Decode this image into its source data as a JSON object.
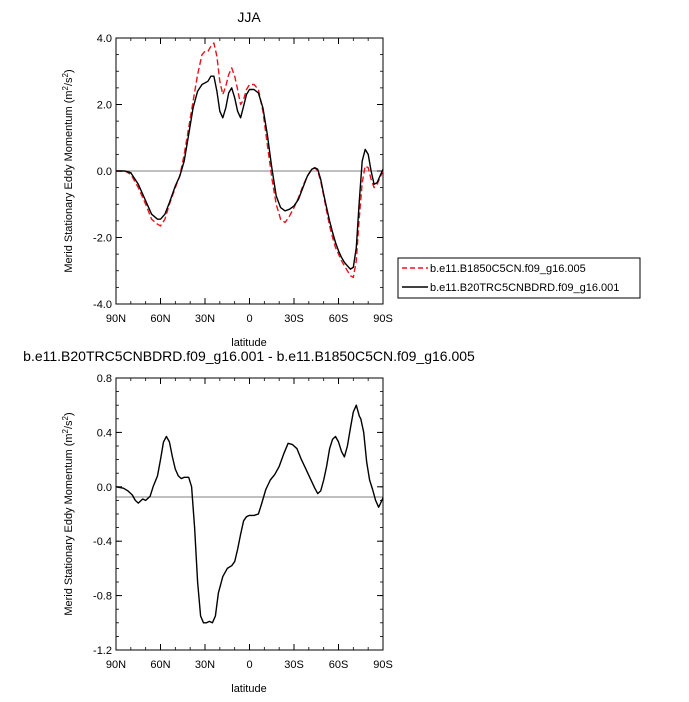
{
  "chart_data": [
    {
      "type": "line",
      "title": "JJA",
      "xlabel": "latitude",
      "ylabel": "Merid Stationary Eddy Momentum (m²/s²)",
      "ylabel_main": "Merid Stationary Eddy Momentum (m",
      "ylabel_sup": "2",
      "ylabel_mid": "/s",
      "ylabel_end": ")",
      "xlim": [
        90,
        -90
      ],
      "ylim": [
        -4.0,
        4.0
      ],
      "grid": false,
      "legend_position": "right",
      "x_ticks": [
        90,
        60,
        30,
        0,
        -30,
        -60,
        -90
      ],
      "x_tick_labels": [
        "90N",
        "60N",
        "30N",
        "0",
        "30S",
        "60S",
        "90S"
      ],
      "y_ticks": [
        -4.0,
        -2.0,
        0.0,
        2.0,
        4.0
      ],
      "y_tick_labels": [
        "-4.0",
        "-2.0",
        "0.0",
        "2.0",
        "4.0"
      ],
      "series": [
        {
          "name": "b.e11.B1850C5CN.f09_g16.005",
          "color": "#e8141c",
          "dash": "dashed",
          "x": [
            90,
            84,
            80,
            75,
            70,
            66,
            62,
            60,
            57,
            54,
            50,
            47,
            44,
            41,
            38,
            35,
            32,
            30,
            28,
            26,
            24,
            22,
            20,
            18,
            16,
            14,
            12,
            10,
            8,
            6,
            4,
            2,
            0,
            -3,
            -6,
            -9,
            -12,
            -15,
            -18,
            -21,
            -24,
            -27,
            -30,
            -33,
            -36,
            -39,
            -42,
            -44,
            -46,
            -48,
            -50,
            -52,
            -54,
            -56,
            -58,
            -60,
            -62,
            -64,
            -66,
            -68,
            -70,
            -72,
            -74,
            -76,
            -78,
            -80,
            -82,
            -84,
            -86,
            -88,
            -90
          ],
          "y": [
            0.0,
            0.0,
            -0.1,
            -0.5,
            -1.0,
            -1.45,
            -1.6,
            -1.65,
            -1.45,
            -1.0,
            -0.5,
            -0.15,
            0.5,
            1.3,
            2.1,
            2.9,
            3.5,
            3.6,
            3.6,
            3.75,
            3.85,
            3.45,
            2.7,
            2.3,
            2.55,
            2.9,
            3.1,
            2.85,
            2.45,
            2.0,
            2.15,
            2.45,
            2.6,
            2.6,
            2.45,
            1.8,
            0.8,
            -0.2,
            -1.0,
            -1.45,
            -1.55,
            -1.35,
            -1.1,
            -0.8,
            -0.45,
            -0.15,
            0.05,
            0.1,
            0.0,
            -0.3,
            -0.75,
            -1.2,
            -1.65,
            -2.0,
            -2.3,
            -2.5,
            -2.7,
            -2.85,
            -3.0,
            -3.15,
            -3.2,
            -2.7,
            -1.4,
            -0.35,
            0.15,
            0.1,
            -0.25,
            -0.5,
            -0.4,
            -0.2,
            0.0
          ]
        },
        {
          "name": "b.e11.B20TRC5CNBDRD.f09_g16.001",
          "color": "#000000",
          "dash": "solid",
          "x": [
            90,
            84,
            80,
            75,
            70,
            66,
            62,
            60,
            57,
            54,
            50,
            47,
            44,
            41,
            38,
            35,
            32,
            30,
            28,
            26,
            24,
            22,
            20,
            18,
            16,
            14,
            12,
            10,
            8,
            6,
            4,
            2,
            0,
            -3,
            -6,
            -9,
            -12,
            -15,
            -18,
            -21,
            -24,
            -27,
            -30,
            -33,
            -36,
            -39,
            -42,
            -44,
            -46,
            -48,
            -50,
            -52,
            -54,
            -56,
            -58,
            -60,
            -62,
            -64,
            -66,
            -68,
            -70,
            -72,
            -74,
            -76,
            -78,
            -80,
            -82,
            -84,
            -86,
            -88,
            -90
          ],
          "y": [
            0.0,
            0.0,
            -0.05,
            -0.4,
            -0.9,
            -1.3,
            -1.45,
            -1.45,
            -1.3,
            -0.95,
            -0.45,
            -0.15,
            0.3,
            1.1,
            1.9,
            2.4,
            2.6,
            2.65,
            2.7,
            2.85,
            2.85,
            2.4,
            1.8,
            1.6,
            1.9,
            2.35,
            2.5,
            2.2,
            1.8,
            1.6,
            1.95,
            2.3,
            2.45,
            2.45,
            2.35,
            1.9,
            1.1,
            0.1,
            -0.75,
            -1.1,
            -1.2,
            -1.15,
            -1.05,
            -0.85,
            -0.5,
            -0.15,
            0.05,
            0.1,
            0.05,
            -0.25,
            -0.7,
            -1.1,
            -1.5,
            -1.85,
            -2.15,
            -2.4,
            -2.6,
            -2.75,
            -2.85,
            -2.95,
            -2.9,
            -2.3,
            -0.9,
            0.3,
            0.65,
            0.5,
            0.0,
            -0.4,
            -0.35,
            -0.15,
            0.05
          ]
        }
      ]
    },
    {
      "type": "line",
      "title": "b.e11.B20TRC5CNBDRD.f09_g16.001 - b.e11.B1850C5CN.f09_g16.005",
      "xlabel": "latitude",
      "ylabel": "Merid Stationary Eddy Momentum (m²/s²)",
      "ylabel_main": "Merid Stationary Eddy Momentum (m",
      "ylabel_sup": "2",
      "ylabel_mid": "/s",
      "ylabel_end": ")",
      "xlim": [
        90,
        -90
      ],
      "ylim": [
        -1.2,
        0.8
      ],
      "grid": false,
      "x_ticks": [
        90,
        60,
        30,
        0,
        -30,
        -60,
        -90
      ],
      "x_tick_labels": [
        "90N",
        "60N",
        "30N",
        "0",
        "30S",
        "60S",
        "90S"
      ],
      "y_ticks": [
        -1.2,
        -0.8,
        -0.4,
        0.0,
        0.4,
        0.8
      ],
      "y_tick_labels": [
        "-1.2",
        "-0.8",
        "-0.4",
        "0.0",
        "0.4",
        "0.8"
      ],
      "series": [
        {
          "color": "#000000",
          "dash": "solid",
          "x": [
            90,
            85,
            82,
            79,
            77,
            75,
            72,
            70,
            67,
            65,
            62,
            60,
            58,
            56,
            54,
            52,
            50,
            48,
            46,
            44,
            41,
            39,
            37,
            35,
            33,
            31,
            29,
            27,
            25,
            23,
            21,
            18,
            15,
            12,
            10,
            8,
            6,
            4,
            2,
            0,
            -3,
            -6,
            -8,
            -11,
            -14,
            -17,
            -20,
            -23,
            -26,
            -29,
            -32,
            -35,
            -38,
            -41,
            -44,
            -46,
            -48,
            -50,
            -52,
            -54,
            -56,
            -58,
            -60,
            -62,
            -64,
            -66,
            -68,
            -70,
            -72,
            -74,
            -75,
            -77,
            -79,
            -81,
            -83,
            -85,
            -87,
            -88,
            -90
          ],
          "y": [
            0.0,
            -0.01,
            -0.03,
            -0.06,
            -0.1,
            -0.12,
            -0.09,
            -0.1,
            -0.07,
            0.0,
            0.08,
            0.2,
            0.33,
            0.37,
            0.33,
            0.22,
            0.13,
            0.08,
            0.06,
            0.07,
            0.07,
            0.0,
            -0.3,
            -0.7,
            -0.95,
            -1.0,
            -1.0,
            -0.99,
            -1.0,
            -0.95,
            -0.78,
            -0.66,
            -0.6,
            -0.58,
            -0.55,
            -0.46,
            -0.35,
            -0.25,
            -0.22,
            -0.21,
            -0.21,
            -0.2,
            -0.13,
            -0.02,
            0.05,
            0.09,
            0.15,
            0.24,
            0.32,
            0.31,
            0.28,
            0.2,
            0.13,
            0.06,
            -0.01,
            -0.05,
            -0.03,
            0.05,
            0.15,
            0.28,
            0.35,
            0.37,
            0.33,
            0.26,
            0.22,
            0.3,
            0.43,
            0.55,
            0.6,
            0.52,
            0.5,
            0.4,
            0.18,
            0.05,
            -0.02,
            -0.1,
            -0.15,
            -0.13,
            -0.08
          ]
        }
      ]
    }
  ]
}
